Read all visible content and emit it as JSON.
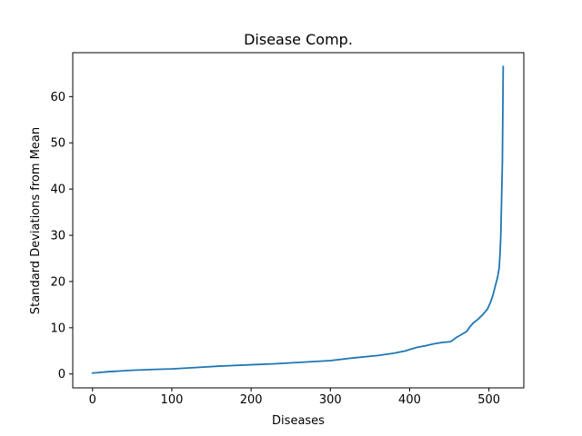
{
  "chart_data": {
    "type": "line",
    "title": "Disease Comp.",
    "xlabel": "Diseases",
    "ylabel": "Standard Deviations from Mean",
    "xlim": [
      -25,
      544
    ],
    "ylim": [
      -3,
      69.5
    ],
    "xticks": [
      0,
      100,
      200,
      300,
      400,
      500
    ],
    "yticks": [
      0,
      10,
      20,
      30,
      40,
      50,
      60
    ],
    "grid": false,
    "series": [
      {
        "color": "#1f77b4",
        "points": [
          [
            0,
            0.2
          ],
          [
            20,
            0.5
          ],
          [
            50,
            0.8
          ],
          [
            80,
            1.0
          ],
          [
            100,
            1.1
          ],
          [
            130,
            1.4
          ],
          [
            160,
            1.7
          ],
          [
            200,
            2.0
          ],
          [
            230,
            2.2
          ],
          [
            260,
            2.5
          ],
          [
            300,
            2.9
          ],
          [
            330,
            3.5
          ],
          [
            360,
            4.0
          ],
          [
            380,
            4.5
          ],
          [
            395,
            5.0
          ],
          [
            400,
            5.3
          ],
          [
            410,
            5.8
          ],
          [
            420,
            6.1
          ],
          [
            430,
            6.5
          ],
          [
            440,
            6.8
          ],
          [
            452,
            7.0
          ],
          [
            458,
            7.8
          ],
          [
            465,
            8.5
          ],
          [
            472,
            9.2
          ],
          [
            476,
            10.2
          ],
          [
            480,
            11.0
          ],
          [
            486,
            11.8
          ],
          [
            492,
            12.8
          ],
          [
            498,
            14.0
          ],
          [
            502,
            15.5
          ],
          [
            505,
            17.0
          ],
          [
            508,
            19.0
          ],
          [
            511,
            21.0
          ],
          [
            513,
            23.0
          ],
          [
            514,
            26.0
          ],
          [
            515,
            30.0
          ],
          [
            516,
            38.0
          ],
          [
            517,
            46.0
          ],
          [
            518,
            66.5
          ]
        ]
      }
    ]
  }
}
